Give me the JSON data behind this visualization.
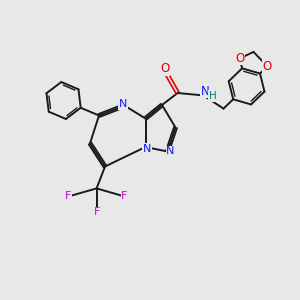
{
  "bg_color": "#e8e8e8",
  "bond_color": "#1a1a1a",
  "nitrogen_color": "#1414ff",
  "oxygen_color": "#dd0000",
  "fluorine_color": "#cc00cc",
  "hydrogen_color": "#008080",
  "figsize": [
    3.0,
    3.0
  ],
  "dpi": 100,
  "xlim": [
    0,
    10
  ],
  "ylim": [
    0,
    10
  ]
}
